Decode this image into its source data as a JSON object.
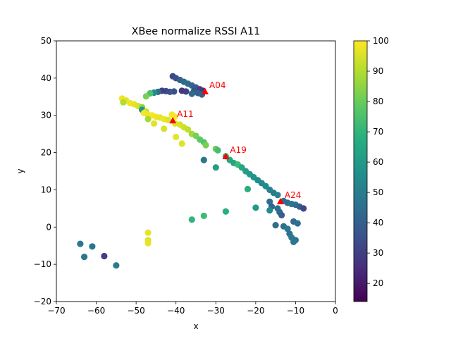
{
  "chart_data": {
    "type": "scatter",
    "title": "XBee normalize RSSI A11",
    "xlabel": "x",
    "ylabel": "y",
    "xlim": [
      -70,
      0
    ],
    "ylim": [
      -20,
      50
    ],
    "xticks": [
      "−70",
      "−60",
      "−50",
      "−40",
      "−30",
      "−20",
      "−10",
      "0"
    ],
    "yticks": [
      "−20",
      "−10",
      "0",
      "10",
      "20",
      "30",
      "40",
      "50"
    ],
    "xtick_values": [
      -70,
      -60,
      -50,
      -40,
      -30,
      -20,
      -10,
      0
    ],
    "ytick_values": [
      -20,
      -10,
      0,
      10,
      20,
      30,
      40,
      50
    ],
    "grid": false,
    "colormap": "viridis",
    "colorbar": {
      "range": [
        14,
        100
      ],
      "ticks": [
        "20",
        "30",
        "40",
        "50",
        "60",
        "70",
        "80",
        "90",
        "100"
      ],
      "tick_values": [
        20,
        30,
        40,
        50,
        60,
        70,
        80,
        90,
        100
      ]
    },
    "points": [
      {
        "x": -40.8,
        "y": 40.5,
        "v": 32
      },
      {
        "x": -40.0,
        "y": 40.0,
        "v": 34
      },
      {
        "x": -39.0,
        "y": 39.5,
        "v": 40
      },
      {
        "x": -38.0,
        "y": 39.0,
        "v": 44
      },
      {
        "x": -37.0,
        "y": 38.5,
        "v": 45
      },
      {
        "x": -36.0,
        "y": 38.0,
        "v": 42
      },
      {
        "x": -35.0,
        "y": 37.5,
        "v": 38
      },
      {
        "x": -34.0,
        "y": 37.0,
        "v": 30
      },
      {
        "x": -33.2,
        "y": 36.6,
        "v": 28
      },
      {
        "x": -35.5,
        "y": 36.5,
        "v": 36
      },
      {
        "x": -34.5,
        "y": 36.0,
        "v": 40
      },
      {
        "x": -33.5,
        "y": 35.6,
        "v": 42
      },
      {
        "x": -36.0,
        "y": 35.8,
        "v": 44
      },
      {
        "x": -37.5,
        "y": 36.4,
        "v": 30
      },
      {
        "x": -38.5,
        "y": 36.6,
        "v": 28
      },
      {
        "x": -40.5,
        "y": 36.4,
        "v": 35
      },
      {
        "x": -41.5,
        "y": 36.3,
        "v": 38
      },
      {
        "x": -42.5,
        "y": 36.5,
        "v": 33
      },
      {
        "x": -43.5,
        "y": 36.6,
        "v": 30
      },
      {
        "x": -44.5,
        "y": 36.3,
        "v": 45
      },
      {
        "x": -45.5,
        "y": 36.1,
        "v": 56
      },
      {
        "x": -46.5,
        "y": 35.9,
        "v": 75
      },
      {
        "x": -47.5,
        "y": 35.1,
        "v": 82
      },
      {
        "x": -53.5,
        "y": 34.5,
        "v": 98
      },
      {
        "x": -52.5,
        "y": 34.0,
        "v": 97
      },
      {
        "x": -53.2,
        "y": 33.5,
        "v": 90
      },
      {
        "x": -51.5,
        "y": 33.3,
        "v": 98
      },
      {
        "x": -50.5,
        "y": 33.0,
        "v": 97
      },
      {
        "x": -49.5,
        "y": 32.5,
        "v": 95
      },
      {
        "x": -48.5,
        "y": 32.2,
        "v": 86
      },
      {
        "x": -48.5,
        "y": 31.5,
        "v": 58
      },
      {
        "x": -47.5,
        "y": 31.0,
        "v": 92
      },
      {
        "x": -48.0,
        "y": 30.6,
        "v": 99
      },
      {
        "x": -47.0,
        "y": 30.2,
        "v": 98
      },
      {
        "x": -46.0,
        "y": 30.0,
        "v": 99
      },
      {
        "x": -45.0,
        "y": 29.6,
        "v": 98
      },
      {
        "x": -44.0,
        "y": 29.4,
        "v": 97
      },
      {
        "x": -43.0,
        "y": 29.0,
        "v": 98
      },
      {
        "x": -42.0,
        "y": 28.8,
        "v": 96
      },
      {
        "x": -47.0,
        "y": 29.0,
        "v": 88
      },
      {
        "x": -45.5,
        "y": 27.8,
        "v": 96
      },
      {
        "x": -43.0,
        "y": 26.4,
        "v": 95
      },
      {
        "x": -41.0,
        "y": 30.2,
        "v": 99
      },
      {
        "x": -40.3,
        "y": 29.6,
        "v": 99
      },
      {
        "x": -40.0,
        "y": 24.2,
        "v": 97
      },
      {
        "x": -38.5,
        "y": 22.4,
        "v": 96
      },
      {
        "x": -40.2,
        "y": 27.8,
        "v": 96
      },
      {
        "x": -39.0,
        "y": 27.5,
        "v": 95
      },
      {
        "x": -38.0,
        "y": 26.8,
        "v": 94
      },
      {
        "x": -37.0,
        "y": 26.2,
        "v": 92
      },
      {
        "x": -36.0,
        "y": 25.0,
        "v": 88
      },
      {
        "x": -35.0,
        "y": 24.5,
        "v": 82
      },
      {
        "x": -34.0,
        "y": 23.5,
        "v": 78
      },
      {
        "x": -33.0,
        "y": 22.8,
        "v": 76
      },
      {
        "x": -32.5,
        "y": 22.0,
        "v": 82
      },
      {
        "x": -30.0,
        "y": 21.0,
        "v": 80
      },
      {
        "x": -29.5,
        "y": 20.6,
        "v": 74
      },
      {
        "x": -27.5,
        "y": 19.0,
        "v": 68
      },
      {
        "x": -26.5,
        "y": 18.0,
        "v": 66
      },
      {
        "x": -25.5,
        "y": 17.2,
        "v": 64
      },
      {
        "x": -24.5,
        "y": 16.8,
        "v": 72
      },
      {
        "x": -23.5,
        "y": 16.0,
        "v": 65
      },
      {
        "x": -22.5,
        "y": 15.0,
        "v": 62
      },
      {
        "x": -21.5,
        "y": 14.2,
        "v": 60
      },
      {
        "x": -20.5,
        "y": 13.4,
        "v": 58
      },
      {
        "x": -19.5,
        "y": 12.6,
        "v": 56
      },
      {
        "x": -18.5,
        "y": 11.8,
        "v": 54
      },
      {
        "x": -17.5,
        "y": 11.0,
        "v": 55
      },
      {
        "x": -16.5,
        "y": 10.0,
        "v": 52
      },
      {
        "x": -15.5,
        "y": 9.2,
        "v": 50
      },
      {
        "x": -14.5,
        "y": 8.6,
        "v": 52
      },
      {
        "x": -33.0,
        "y": 18.0,
        "v": 48
      },
      {
        "x": -30.0,
        "y": 16.0,
        "v": 62
      },
      {
        "x": -22.0,
        "y": 10.2,
        "v": 68
      },
      {
        "x": -20.0,
        "y": 5.2,
        "v": 60
      },
      {
        "x": -16.5,
        "y": 6.8,
        "v": 45
      },
      {
        "x": -16.0,
        "y": 5.5,
        "v": 42
      },
      {
        "x": -14.5,
        "y": 5.0,
        "v": 45
      },
      {
        "x": -14.0,
        "y": 4.0,
        "v": 44
      },
      {
        "x": -13.5,
        "y": 3.2,
        "v": 40
      },
      {
        "x": -16.5,
        "y": 4.5,
        "v": 55
      },
      {
        "x": -13.0,
        "y": 7.0,
        "v": 45
      },
      {
        "x": -12.0,
        "y": 6.5,
        "v": 45
      },
      {
        "x": -11.0,
        "y": 6.2,
        "v": 48
      },
      {
        "x": -10.0,
        "y": 6.0,
        "v": 45
      },
      {
        "x": -9.0,
        "y": 5.5,
        "v": 40
      },
      {
        "x": -8.0,
        "y": 5.0,
        "v": 32
      },
      {
        "x": -15.0,
        "y": 0.5,
        "v": 45
      },
      {
        "x": -13.0,
        "y": 0.2,
        "v": 46
      },
      {
        "x": -12.0,
        "y": -0.5,
        "v": 48
      },
      {
        "x": -10.5,
        "y": 1.5,
        "v": 45
      },
      {
        "x": -9.5,
        "y": 1.0,
        "v": 46
      },
      {
        "x": -11.5,
        "y": -1.8,
        "v": 46
      },
      {
        "x": -11.0,
        "y": -2.8,
        "v": 48
      },
      {
        "x": -10.0,
        "y": -3.5,
        "v": 46
      },
      {
        "x": -10.5,
        "y": -4.0,
        "v": 48
      },
      {
        "x": -36.0,
        "y": 2.0,
        "v": 70
      },
      {
        "x": -33.0,
        "y": 3.0,
        "v": 72
      },
      {
        "x": -27.5,
        "y": 4.2,
        "v": 68
      },
      {
        "x": -47.0,
        "y": -1.5,
        "v": 97
      },
      {
        "x": -47.0,
        "y": -3.5,
        "v": 96
      },
      {
        "x": -47.0,
        "y": -4.3,
        "v": 97
      },
      {
        "x": -64.0,
        "y": -4.5,
        "v": 48
      },
      {
        "x": -61.0,
        "y": -5.2,
        "v": 47
      },
      {
        "x": -63.0,
        "y": -8.0,
        "v": 48
      },
      {
        "x": -58.0,
        "y": -7.8,
        "v": 30
      },
      {
        "x": -55.0,
        "y": -10.3,
        "v": 50
      }
    ],
    "anchors": [
      {
        "label": "A04",
        "x": -32.7,
        "y": 36.4
      },
      {
        "label": "A11",
        "x": -40.8,
        "y": 28.6
      },
      {
        "label": "A19",
        "x": -27.5,
        "y": 19.0
      },
      {
        "label": "A24",
        "x": -13.8,
        "y": 6.9
      }
    ],
    "anchor_color": "#ff0000"
  }
}
